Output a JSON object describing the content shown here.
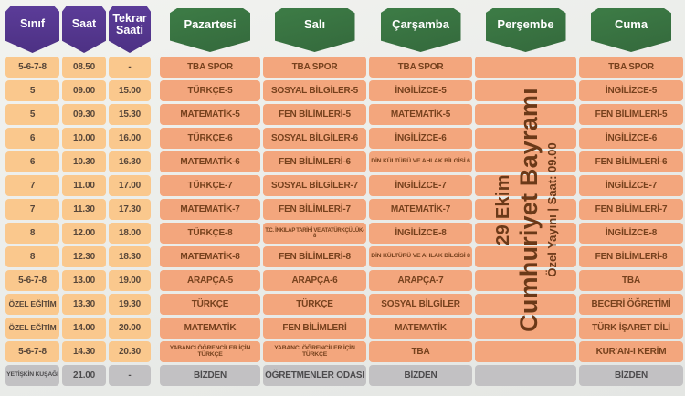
{
  "colors": {
    "header_purple": "#5b3c98",
    "header_green": "#3d7c46",
    "cell_yellow": "#fac88d",
    "cell_salmon": "#f3a67d",
    "cell_gray": "#c2c1c3",
    "text_left": "#574639",
    "text_day": "#76411d",
    "text_gray_row": "#4c4b4d",
    "banner_text": "#6b3918",
    "badge_text": "#ffffff"
  },
  "chart_data": {
    "type": "table",
    "columns": [
      {
        "key": "sinif",
        "label": "Sınıf",
        "style": "purple"
      },
      {
        "key": "saat",
        "label": "Saat",
        "style": "purple"
      },
      {
        "key": "tekrar-saati",
        "label": "Tekrar Saati",
        "style": "purple"
      },
      {
        "key": "pazartesi",
        "label": "Pazartesi",
        "style": "green"
      },
      {
        "key": "sali",
        "label": "Salı",
        "style": "green"
      },
      {
        "key": "carsamba",
        "label": "Çarşamba",
        "style": "green"
      },
      {
        "key": "persembe",
        "label": "Perşembe",
        "style": "green"
      },
      {
        "key": "cuma",
        "label": "Cuma",
        "style": "green"
      }
    ],
    "rows": [
      {
        "variant": "normal",
        "cells": [
          "5-6-7-8",
          "08.50",
          "-",
          "TBA SPOR",
          "TBA SPOR",
          "TBA SPOR",
          "",
          "TBA SPOR"
        ]
      },
      {
        "variant": "normal",
        "cells": [
          "5",
          "09.00",
          "15.00",
          "TÜRKÇE-5",
          "SOSYAL BİLGİLER-5",
          "İNGİLİZCE-5",
          "",
          "İNGİLİZCE-5"
        ]
      },
      {
        "variant": "normal",
        "cells": [
          "5",
          "09.30",
          "15.30",
          "MATEMATİK-5",
          "FEN BİLİMLERİ-5",
          "MATEMATİK-5",
          "",
          "FEN BİLİMLERİ-5"
        ]
      },
      {
        "variant": "normal",
        "cells": [
          "6",
          "10.00",
          "16.00",
          "TÜRKÇE-6",
          "SOSYAL BİLGİLER-6",
          "İNGİLİZCE-6",
          "",
          "İNGİLİZCE-6"
        ]
      },
      {
        "variant": "normal",
        "cells": [
          "6",
          "10.30",
          "16.30",
          "MATEMATİK-6",
          "FEN BİLİMLERİ-6",
          "DİN KÜLTÜRÜ VE AHLAK BİLGİSİ 6",
          "",
          "FEN BİLİMLERİ-6"
        ]
      },
      {
        "variant": "normal",
        "cells": [
          "7",
          "11.00",
          "17.00",
          "TÜRKÇE-7",
          "SOSYAL BİLGİLER-7",
          "İNGİLİZCE-7",
          "",
          "İNGİLİZCE-7"
        ]
      },
      {
        "variant": "normal",
        "cells": [
          "7",
          "11.30",
          "17.30",
          "MATEMATİK-7",
          "FEN BİLİMLERİ-7",
          "MATEMATİK-7",
          "",
          "FEN BİLİMLERİ-7"
        ]
      },
      {
        "variant": "normal",
        "cells": [
          "8",
          "12.00",
          "18.00",
          "TÜRKÇE-8",
          "T.C. İNKILAP TARİHİ VE ATATÜRKÇÜLÜK-8",
          "İNGİLİZCE-8",
          "",
          "İNGİLİZCE-8"
        ]
      },
      {
        "variant": "normal",
        "cells": [
          "8",
          "12.30",
          "18.30",
          "MATEMATİK-8",
          "FEN BİLİMLERİ-8",
          "DİN KÜLTÜRÜ VE AHLAK BİLGİSİ 8",
          "",
          "FEN BİLİMLERİ-8"
        ]
      },
      {
        "variant": "normal",
        "cells": [
          "5-6-7-8",
          "13.00",
          "19.00",
          "ARAPÇA-5",
          "ARAPÇA-6",
          "ARAPÇA-7",
          "",
          "TBA"
        ]
      },
      {
        "variant": "normal",
        "cells": [
          "ÖZEL EĞİTİM",
          "13.30",
          "19.30",
          "TÜRKÇE",
          "TÜRKÇE",
          "SOSYAL BİLGİLER",
          "",
          "BECERİ ÖĞRETİMİ"
        ]
      },
      {
        "variant": "normal",
        "cells": [
          "ÖZEL EĞİTİM",
          "14.00",
          "20.00",
          "MATEMATİK",
          "FEN BİLİMLERİ",
          "MATEMATİK",
          "",
          "TÜRK İŞARET DİLİ"
        ]
      },
      {
        "variant": "normal",
        "cells": [
          "5-6-7-8",
          "14.30",
          "20.30",
          "YABANCI ÖĞRENCİLER İÇİN TÜRKÇE",
          "YABANCI ÖĞRENCİLER İÇİN TÜRKÇE",
          "TBA",
          "",
          "KUR'AN-I KERİM"
        ]
      },
      {
        "variant": "adult",
        "cells": [
          "YETİŞKİN KUŞAĞI",
          "21.00",
          "-",
          "BİZDEN",
          "ÖĞRETMENLER ODASI",
          "BİZDEN",
          "",
          "BİZDEN"
        ]
      }
    ],
    "thursday_banner": {
      "line1": "29 Ekim",
      "line2": "Cumhuriyet Bayramı",
      "line3": "Özel Yayını | Saat: 09.00"
    }
  }
}
